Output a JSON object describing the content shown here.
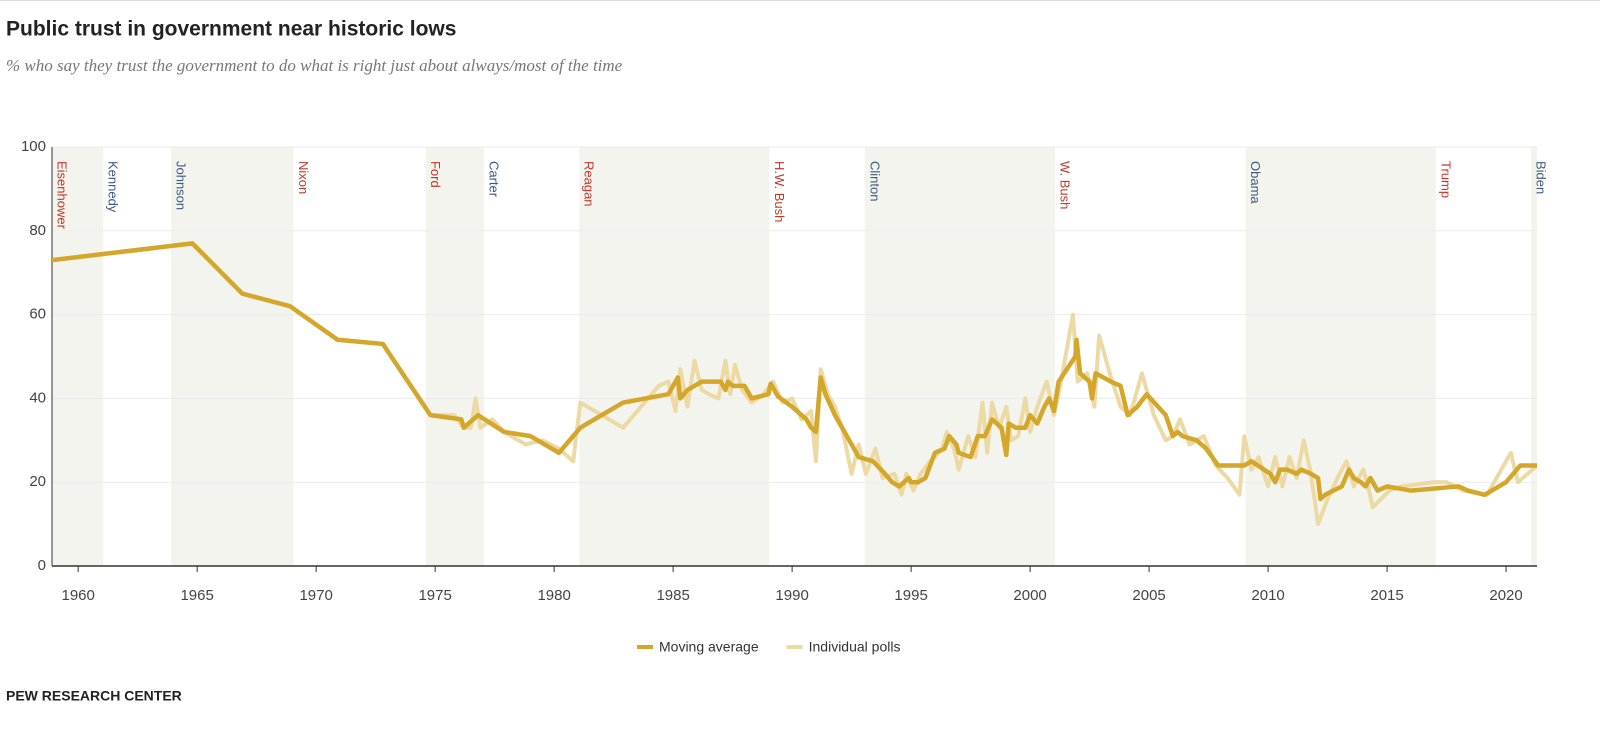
{
  "chart_data": {
    "type": "line",
    "title": "Public trust in government near historic lows",
    "subtitle": "% who say they trust the government to do what is right just about always/most of the time",
    "source": "PEW RESEARCH CENTER",
    "xlim": [
      1958.9,
      2021.3
    ],
    "xticks": [
      1960,
      1965,
      1970,
      1975,
      1980,
      1985,
      1990,
      1995,
      2000,
      2005,
      2010,
      2015,
      2020
    ],
    "ylim": [
      0,
      100
    ],
    "yticks": [
      0,
      20,
      40,
      60,
      80,
      100
    ],
    "grid": true,
    "legend": "bottom",
    "presidents": [
      {
        "name": "Eisenhower",
        "start": 1953.05,
        "color": "#c0392b"
      },
      {
        "name": "Kennedy",
        "start": 1961.05,
        "color": "#3d5a80"
      },
      {
        "name": "Johnson",
        "start": 1963.9,
        "color": "#3d5a80"
      },
      {
        "name": "Nixon",
        "start": 1969.05,
        "color": "#c0392b"
      },
      {
        "name": "Ford",
        "start": 1974.6,
        "color": "#c0392b"
      },
      {
        "name": "Carter",
        "start": 1977.05,
        "color": "#3d5a80"
      },
      {
        "name": "Reagan",
        "start": 1981.05,
        "color": "#c0392b"
      },
      {
        "name": "H.W. Bush",
        "start": 1989.05,
        "color": "#c0392b"
      },
      {
        "name": "Clinton",
        "start": 1993.05,
        "color": "#3d5a80"
      },
      {
        "name": "W. Bush",
        "start": 2001.05,
        "color": "#c0392b"
      },
      {
        "name": "Obama",
        "start": 2009.05,
        "color": "#3d5a80"
      },
      {
        "name": "Trump",
        "start": 2017.05,
        "color": "#c0392b"
      },
      {
        "name": "Biden",
        "start": 2021.05,
        "color": "#3d5a80"
      }
    ],
    "series": [
      {
        "name": "Moving average",
        "color": "#d4a62a",
        "x": [
          1958.9,
          1964.8,
          1966.9,
          1968.9,
          1970.9,
          1972.8,
          1974.8,
          1976.1,
          1976.2,
          1976.8,
          1977.9,
          1979.0,
          1980.2,
          1980.8,
          1981.1,
          1982.9,
          1984.8,
          1985.2,
          1985.3,
          1985.6,
          1986.2,
          1987.0,
          1987.2,
          1987.3,
          1987.5,
          1988.0,
          1988.3,
          1989.0,
          1989.1,
          1989.4,
          1990.0,
          1990.6,
          1990.8,
          1991.0,
          1991.2,
          1991.4,
          1991.8,
          1992.8,
          1993.4,
          1993.9,
          1994.2,
          1994.5,
          1994.9,
          1995.0,
          1995.3,
          1995.6,
          1996.0,
          1996.4,
          1996.6,
          1996.9,
          1997.0,
          1997.5,
          1997.8,
          1998.1,
          1998.4,
          1998.8,
          1999.0,
          1999.1,
          1999.4,
          1999.8,
          2000.0,
          2000.3,
          2000.6,
          2000.8,
          2001.0,
          2001.2,
          2001.9,
          2001.95,
          2002.1,
          2002.5,
          2002.6,
          2002.75,
          2003.4,
          2003.8,
          2004.1,
          2004.5,
          2004.9,
          2005.7,
          2006.0,
          2006.2,
          2006.4,
          2007.0,
          2007.4,
          2007.9,
          2009.0,
          2009.3,
          2010.1,
          2010.3,
          2010.5,
          2010.8,
          2011.2,
          2011.4,
          2011.8,
          2012.1,
          2012.2,
          2012.4,
          2013.1,
          2013.4,
          2013.6,
          2013.9,
          2014.1,
          2014.3,
          2014.6,
          2015.0,
          2016.0,
          2017.0,
          2018.0,
          2018.4,
          2019.1,
          2020.0,
          2020.6,
          2021.3
        ],
        "values": [
          73,
          77,
          65,
          62,
          54,
          53,
          36,
          35,
          33,
          36,
          32,
          31,
          27,
          31,
          33,
          39,
          41,
          45,
          40,
          42,
          44,
          44,
          42,
          44,
          43,
          43,
          40,
          41,
          43.5,
          40.5,
          38,
          35,
          33,
          32,
          45,
          41,
          36,
          26,
          25,
          22,
          20,
          19,
          21,
          20,
          20,
          21,
          27,
          28,
          31,
          29,
          27,
          26,
          31,
          31,
          35,
          33,
          26.5,
          34,
          33,
          33,
          36,
          34,
          38,
          40,
          37,
          44,
          50,
          54,
          46,
          44,
          40,
          46,
          44,
          43,
          36,
          38,
          41,
          36,
          31,
          32,
          31,
          30,
          28,
          24,
          24,
          25,
          22,
          20,
          23,
          23,
          22,
          23,
          22,
          21,
          16,
          17,
          19,
          23,
          21,
          20,
          19,
          21,
          18,
          19,
          18,
          18.5,
          19,
          18,
          17,
          20,
          24,
          24
        ]
      },
      {
        "name": "Individual polls",
        "color": "#ecd9a4",
        "x": [
          1958.9,
          1964.8,
          1966.9,
          1968.9,
          1970.9,
          1972.8,
          1974.8,
          1975.8,
          1976.2,
          1976.5,
          1976.7,
          1976.9,
          1977.4,
          1977.9,
          1978.8,
          1979.5,
          1980.2,
          1980.8,
          1981.1,
          1982.0,
          1982.9,
          1984.4,
          1984.8,
          1985.1,
          1985.3,
          1985.6,
          1985.9,
          1986.2,
          1986.5,
          1986.9,
          1987.2,
          1987.4,
          1987.6,
          1987.9,
          1988.3,
          1988.8,
          1989.2,
          1989.6,
          1990.0,
          1990.4,
          1990.8,
          1991.0,
          1991.2,
          1991.5,
          1991.8,
          1992.1,
          1992.5,
          1992.8,
          1993.1,
          1993.5,
          1993.8,
          1994.3,
          1994.6,
          1994.8,
          1995.1,
          1995.4,
          1995.8,
          1996.0,
          1996.3,
          1996.5,
          1996.8,
          1997.0,
          1997.4,
          1997.7,
          1998.0,
          1998.2,
          1998.4,
          1998.7,
          1999.0,
          1999.2,
          1999.5,
          1999.8,
          2000.0,
          2000.3,
          2000.7,
          2001.0,
          2001.3,
          2001.8,
          2002.0,
          2002.4,
          2002.7,
          2002.9,
          2003.4,
          2003.8,
          2004.2,
          2004.7,
          2005.2,
          2005.7,
          2006.0,
          2006.3,
          2006.7,
          2007.3,
          2007.8,
          2008.3,
          2008.8,
          2009.0,
          2009.3,
          2009.6,
          2010.0,
          2010.3,
          2010.6,
          2010.9,
          2011.2,
          2011.5,
          2011.8,
          2012.1,
          2012.5,
          2013.0,
          2013.3,
          2013.6,
          2014.0,
          2014.2,
          2014.4,
          2015.1,
          2015.6,
          2017.0,
          2017.5,
          2018.2,
          2019.2,
          2020.2,
          2020.5,
          2021.3
        ],
        "values": [
          73,
          77,
          65,
          62,
          54,
          53,
          36,
          36,
          33,
          33,
          40,
          33,
          35,
          32,
          29,
          30,
          28,
          25,
          39,
          36,
          33,
          43,
          44,
          37,
          47,
          38,
          49,
          42,
          41,
          40,
          49,
          41,
          48,
          42,
          39,
          41,
          44,
          39,
          40,
          35,
          37,
          25,
          47,
          41,
          38,
          33,
          22,
          29,
          22,
          28,
          21,
          22,
          17,
          22,
          18,
          22,
          25,
          26,
          28,
          32,
          28,
          23,
          31,
          26,
          39,
          27,
          39,
          33,
          38,
          30,
          31,
          40,
          32,
          38,
          44,
          36,
          44,
          60,
          44,
          46,
          38,
          55,
          45,
          38,
          36,
          46,
          36,
          30,
          31,
          35,
          29,
          31,
          24,
          21,
          17,
          31,
          23,
          26,
          19,
          26,
          19,
          26,
          21,
          30,
          22,
          10,
          16,
          22,
          25,
          19,
          23,
          19,
          14,
          18,
          19,
          20,
          20,
          18,
          17,
          27,
          20,
          24
        ]
      }
    ]
  }
}
